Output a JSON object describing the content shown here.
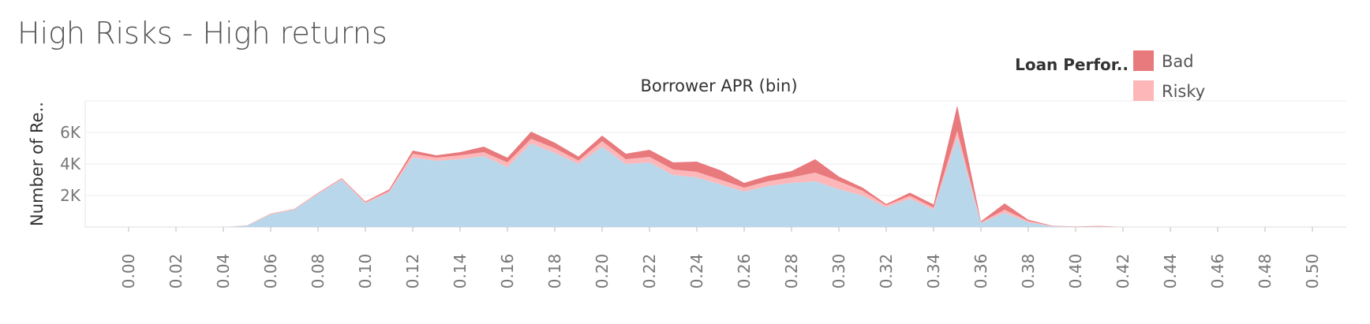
{
  "title": "High Risks - High returns",
  "legend": {
    "title": "Loan Perfor..",
    "items": [
      {
        "label": "Bad",
        "color": "#e8797c"
      },
      {
        "label": "Risky",
        "color": "#fdb7b9"
      }
    ]
  },
  "chart_data": {
    "type": "area",
    "stacked": true,
    "title": "Borrower APR (bin)",
    "xlabel": "Borrower APR (bin)",
    "ylabel": "Number of Re..",
    "x": [
      0.0,
      0.01,
      0.02,
      0.03,
      0.04,
      0.05,
      0.06,
      0.07,
      0.08,
      0.09,
      0.1,
      0.11,
      0.12,
      0.13,
      0.14,
      0.15,
      0.16,
      0.17,
      0.18,
      0.19,
      0.2,
      0.21,
      0.22,
      0.23,
      0.24,
      0.25,
      0.26,
      0.27,
      0.28,
      0.29,
      0.3,
      0.31,
      0.32,
      0.33,
      0.34,
      0.35,
      0.36,
      0.37,
      0.38,
      0.39,
      0.4,
      0.41,
      0.42,
      0.43,
      0.44,
      0.45,
      0.46,
      0.47,
      0.48,
      0.49,
      0.5
    ],
    "x_ticks": [
      "0.00",
      "0.02",
      "0.04",
      "0.06",
      "0.08",
      "0.10",
      "0.12",
      "0.14",
      "0.16",
      "0.18",
      "0.20",
      "0.22",
      "0.24",
      "0.26",
      "0.28",
      "0.30",
      "0.32",
      "0.34",
      "0.36",
      "0.38",
      "0.40",
      "0.42",
      "0.44",
      "0.46",
      "0.48",
      "0.50"
    ],
    "y_ticks": [
      {
        "value": 2000,
        "label": "2K"
      },
      {
        "value": 4000,
        "label": "4K"
      },
      {
        "value": 6000,
        "label": "6K"
      }
    ],
    "ylim": [
      0,
      8000
    ],
    "grid": true,
    "series": [
      {
        "name": "",
        "color": "#b9d7ea",
        "values": [
          0,
          0,
          0,
          0,
          0,
          80,
          800,
          1100,
          2100,
          3000,
          1500,
          2200,
          4400,
          4200,
          4300,
          4500,
          3800,
          5300,
          4700,
          4000,
          5100,
          4000,
          4100,
          3300,
          3150,
          2700,
          2250,
          2600,
          2800,
          2900,
          2400,
          2000,
          1250,
          1800,
          1100,
          5700,
          250,
          900,
          300,
          50,
          10,
          20,
          0,
          0,
          0,
          0,
          0,
          0,
          0,
          0,
          0
        ]
      },
      {
        "name": "Risky",
        "color": "#fdb7b9",
        "values": [
          0,
          0,
          0,
          0,
          0,
          10,
          30,
          30,
          40,
          60,
          70,
          80,
          250,
          200,
          250,
          250,
          300,
          300,
          300,
          220,
          350,
          300,
          350,
          350,
          350,
          300,
          250,
          300,
          350,
          550,
          500,
          300,
          130,
          180,
          130,
          400,
          50,
          200,
          80,
          20,
          10,
          20,
          0,
          0,
          0,
          0,
          0,
          0,
          0,
          0,
          0
        ]
      },
      {
        "name": "Bad",
        "color": "#e8797c",
        "values": [
          0,
          0,
          0,
          0,
          0,
          10,
          20,
          20,
          30,
          40,
          50,
          100,
          200,
          150,
          200,
          350,
          300,
          450,
          350,
          250,
          350,
          350,
          450,
          450,
          650,
          600,
          300,
          350,
          400,
          850,
          300,
          200,
          80,
          200,
          200,
          1600,
          60,
          400,
          80,
          20,
          10,
          30,
          0,
          0,
          0,
          0,
          0,
          0,
          0,
          0,
          0
        ]
      }
    ]
  }
}
